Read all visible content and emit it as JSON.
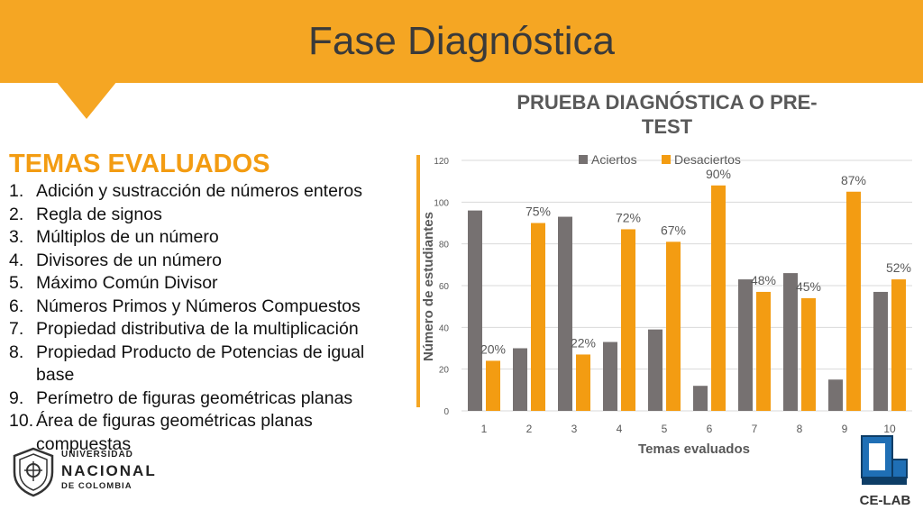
{
  "slide": {
    "title": "Fase Diagnóstica"
  },
  "topics": {
    "heading": "TEMAS EVALUADOS",
    "items": [
      {
        "num": "1.",
        "text": "Adición y sustracción de números enteros"
      },
      {
        "num": "2.",
        "text": "Regla de signos"
      },
      {
        "num": "3.",
        "text": "Múltiplos de un número"
      },
      {
        "num": "4.",
        "text": "Divisores de un número"
      },
      {
        "num": "5.",
        "text": "Máximo Común Divisor"
      },
      {
        "num": "6.",
        "text": "Números Primos y Números Compuestos"
      },
      {
        "num": "7.",
        "text": "Propiedad distributiva de la multiplicación"
      },
      {
        "num": "8.",
        "text": "Propiedad Producto de Potencias de igual base"
      },
      {
        "num": "9.",
        "text": "Perímetro de figuras geométricas planas"
      },
      {
        "num": "10.",
        "text": "Área de figuras geométricas planas compuestas"
      }
    ]
  },
  "logos": {
    "university": {
      "line1": "UNIVERSIDAD",
      "line2": "NACIONAL",
      "line3": "DE COLOMBIA"
    },
    "lab": {
      "text": "CE-LAB"
    }
  },
  "colors": {
    "accent": "#f5a623",
    "aciertos": "#767171",
    "desaciertos": "#f39c12"
  },
  "chart_data": {
    "type": "bar",
    "title": "PRUEBA DIAGNÓSTICA O PRE-TEST",
    "title_lines": [
      "PRUEBA DIAGNÓSTICA O PRE-",
      "TEST"
    ],
    "xlabel": "Temas evaluados",
    "ylabel": "Número de estudiantes",
    "categories": [
      "1",
      "2",
      "3",
      "4",
      "5",
      "6",
      "7",
      "8",
      "9",
      "10"
    ],
    "ylim": [
      0,
      120
    ],
    "yticks": [
      0,
      20,
      40,
      60,
      80,
      100,
      120
    ],
    "legend_position": "top",
    "grid": true,
    "series": [
      {
        "name": "Aciertos",
        "values": [
          96,
          30,
          93,
          33,
          39,
          12,
          63,
          66,
          15,
          57
        ]
      },
      {
        "name": "Desaciertos",
        "values": [
          24,
          90,
          27,
          87,
          81,
          108,
          57,
          54,
          105,
          63
        ]
      }
    ],
    "data_labels": [
      "20%",
      "75%",
      "22%",
      "72%",
      "67%",
      "90%",
      "48%",
      "45%",
      "87%",
      "52%"
    ]
  }
}
